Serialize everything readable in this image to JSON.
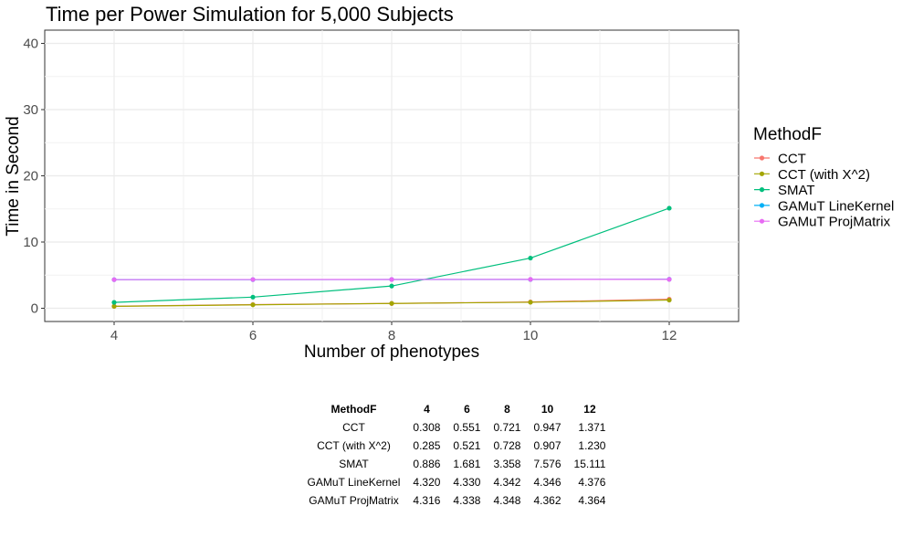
{
  "chart_data": {
    "type": "line",
    "title": "Time per Power Simulation for 5,000 Subjects",
    "xlabel": "Number of phenotypes",
    "ylabel": "Time in Second",
    "x": [
      4,
      6,
      8,
      10,
      12
    ],
    "xlim": [
      3,
      13
    ],
    "ylim": [
      -2,
      42
    ],
    "xticks": [
      4,
      6,
      8,
      10,
      12
    ],
    "yticks": [
      0,
      10,
      20,
      30,
      40
    ],
    "grid": true,
    "legend_title": "MethodF",
    "legend_position": "right",
    "series": [
      {
        "name": "CCT",
        "color": "#F8766D",
        "values": [
          0.308,
          0.551,
          0.721,
          0.947,
          1.371
        ]
      },
      {
        "name": "CCT (with X^2)",
        "color": "#A3A500",
        "values": [
          0.285,
          0.521,
          0.728,
          0.907,
          1.23
        ]
      },
      {
        "name": "SMAT",
        "color": "#00BF7D",
        "values": [
          0.886,
          1.681,
          3.358,
          7.576,
          15.111
        ]
      },
      {
        "name": "GAMuT LineKernel",
        "color": "#00B0F6",
        "values": [
          4.32,
          4.33,
          4.342,
          4.346,
          4.376
        ]
      },
      {
        "name": "GAMuT ProjMatrix",
        "color": "#E76BF3",
        "values": [
          4.316,
          4.338,
          4.348,
          4.362,
          4.364
        ]
      }
    ]
  },
  "table": {
    "headers": [
      "MethodF",
      "4",
      "6",
      "8",
      "10",
      "12"
    ],
    "rows": [
      [
        "CCT",
        "0.308",
        "0.551",
        "0.721",
        "0.947",
        "1.371"
      ],
      [
        "CCT (with X^2)",
        "0.285",
        "0.521",
        "0.728",
        "0.907",
        "1.230"
      ],
      [
        "SMAT",
        "0.886",
        "1.681",
        "3.358",
        "7.576",
        "15.111"
      ],
      [
        "GAMuT LineKernel",
        "4.320",
        "4.330",
        "4.342",
        "4.346",
        "4.376"
      ],
      [
        "GAMuT ProjMatrix",
        "4.316",
        "4.338",
        "4.348",
        "4.362",
        "4.364"
      ]
    ]
  }
}
